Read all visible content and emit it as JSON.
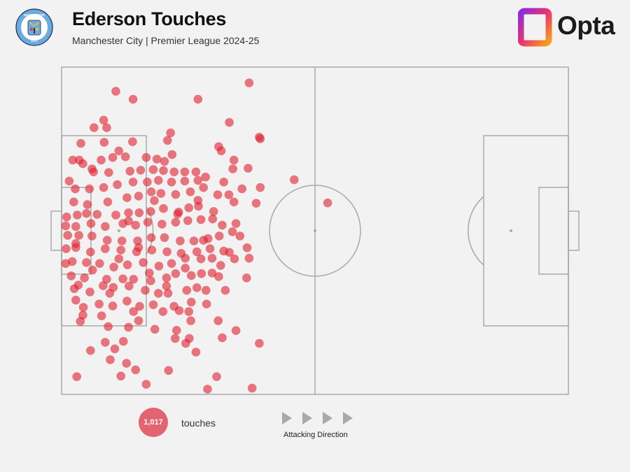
{
  "header": {
    "title": "Ederson Touches",
    "subtitle": "Manchester City | Premier League 2024-25",
    "crest_text": "MANCHESTER CITY",
    "brand": "Opta"
  },
  "legend": {
    "count_label": "1,017",
    "unit_label": "touches",
    "direction_label": "Attacking Direction"
  },
  "colors": {
    "dot": "#e0202f",
    "pitch_line": "#a9a9a9",
    "background": "#f2f2f2",
    "crest_blue": "#6cabdd"
  },
  "chart_data": {
    "type": "scatter",
    "title": "Ederson Touches",
    "subtitle": "Manchester City | Premier League 2024-25",
    "total_touches": 1017,
    "pitch_orientation": "horizontal, attacking left to right",
    "x_range": [
      0,
      100
    ],
    "y_range": [
      0,
      100
    ],
    "points_note": "x = % of pitch length from own goal, y = % of pitch width from top; visible sample of touch locations",
    "points": [
      [
        10.7,
        7.4
      ],
      [
        14.1,
        9.8
      ],
      [
        26.9,
        9.8
      ],
      [
        37.0,
        4.8
      ],
      [
        8.3,
        16.2
      ],
      [
        8.9,
        18.5
      ],
      [
        33.1,
        16.9
      ],
      [
        39.0,
        21.4
      ],
      [
        39.2,
        21.9
      ],
      [
        31.0,
        24.3
      ],
      [
        31.5,
        25.6
      ],
      [
        14.0,
        22.8
      ],
      [
        21.5,
        20.1
      ],
      [
        20.9,
        22.4
      ],
      [
        21.8,
        26.7
      ],
      [
        18.8,
        28.1
      ],
      [
        16.7,
        27.6
      ],
      [
        12.6,
        27.4
      ],
      [
        10.1,
        27.6
      ],
      [
        7.8,
        28.4
      ],
      [
        3.8,
        23.3
      ],
      [
        3.5,
        28.4
      ],
      [
        2.2,
        28.4
      ],
      [
        6.3,
        32.0
      ],
      [
        9.3,
        32.2
      ],
      [
        13.5,
        31.8
      ],
      [
        18.1,
        31.3
      ],
      [
        20.1,
        31.6
      ],
      [
        22.2,
        32.0
      ],
      [
        24.3,
        32.0
      ],
      [
        26.5,
        32.0
      ],
      [
        28.4,
        33.6
      ],
      [
        33.8,
        31.1
      ],
      [
        36.8,
        30.9
      ],
      [
        45.9,
        34.4
      ],
      [
        26.9,
        34.6
      ],
      [
        24.3,
        34.8
      ],
      [
        21.7,
        35.1
      ],
      [
        19.1,
        34.6
      ],
      [
        16.9,
        35.1
      ],
      [
        14.1,
        35.1
      ],
      [
        11.0,
        35.9
      ],
      [
        5.5,
        37.2
      ],
      [
        2.7,
        37.2
      ],
      [
        1.5,
        34.8
      ],
      [
        32.0,
        35.1
      ],
      [
        28.0,
        36.8
      ],
      [
        25.4,
        38.1
      ],
      [
        22.5,
        38.9
      ],
      [
        19.6,
        38.6
      ],
      [
        17.7,
        38.1
      ],
      [
        15.2,
        39.4
      ],
      [
        12.9,
        39.9
      ],
      [
        9.1,
        41.2
      ],
      [
        5.1,
        42.0
      ],
      [
        2.4,
        41.2
      ],
      [
        26.9,
        40.7
      ],
      [
        30.8,
        39.0
      ],
      [
        34.0,
        41.2
      ],
      [
        33.0,
        39.0
      ],
      [
        35.6,
        37.2
      ],
      [
        38.4,
        41.6
      ],
      [
        52.5,
        41.5
      ],
      [
        27.0,
        42.5
      ],
      [
        25.1,
        43.0
      ],
      [
        23.1,
        44.3
      ],
      [
        20.1,
        43.2
      ],
      [
        17.6,
        44.1
      ],
      [
        15.3,
        44.5
      ],
      [
        13.2,
        44.5
      ],
      [
        10.7,
        45.2
      ],
      [
        7.0,
        45.0
      ],
      [
        3.1,
        45.2
      ],
      [
        1.0,
        45.8
      ],
      [
        0.8,
        48.5
      ],
      [
        2.8,
        48.7
      ],
      [
        5.8,
        47.8
      ],
      [
        8.6,
        48.7
      ],
      [
        12.1,
        47.8
      ],
      [
        14.6,
        48.3
      ],
      [
        17.0,
        47.4
      ],
      [
        19.8,
        48.0
      ],
      [
        22.5,
        47.4
      ],
      [
        24.9,
        46.9
      ],
      [
        27.5,
        46.6
      ],
      [
        29.8,
        46.4
      ],
      [
        31.7,
        48.3
      ],
      [
        33.7,
        50.3
      ],
      [
        35.2,
        51.6
      ],
      [
        31.1,
        51.6
      ],
      [
        28.9,
        52.4
      ],
      [
        26.1,
        53.1
      ],
      [
        23.4,
        53.1
      ],
      [
        20.3,
        52.1
      ],
      [
        17.7,
        52.1
      ],
      [
        15.0,
        53.1
      ],
      [
        11.9,
        53.1
      ],
      [
        9.0,
        52.9
      ],
      [
        6.0,
        51.6
      ],
      [
        3.4,
        51.4
      ],
      [
        1.2,
        51.4
      ],
      [
        0.9,
        55.5
      ],
      [
        2.8,
        55.1
      ],
      [
        5.7,
        56.5
      ],
      [
        8.6,
        55.5
      ],
      [
        11.7,
        55.9
      ],
      [
        14.8,
        56.4
      ],
      [
        17.8,
        55.9
      ],
      [
        20.8,
        56.4
      ],
      [
        23.6,
        56.9
      ],
      [
        26.7,
        56.4
      ],
      [
        29.3,
        55.5
      ],
      [
        32.0,
        56.2
      ],
      [
        33.1,
        56.6
      ],
      [
        2.1,
        59.4
      ],
      [
        4.9,
        59.7
      ],
      [
        7.5,
        60.0
      ],
      [
        10.3,
        61.1
      ],
      [
        13.0,
        60.4
      ],
      [
        16.1,
        59.7
      ],
      [
        19.2,
        60.8
      ],
      [
        21.7,
        60.0
      ],
      [
        24.4,
        58.4
      ],
      [
        27.5,
        58.6
      ],
      [
        29.7,
        58.4
      ],
      [
        31.4,
        60.6
      ],
      [
        34.1,
        58.6
      ],
      [
        37.0,
        58.4
      ],
      [
        1.9,
        63.8
      ],
      [
        4.5,
        64.4
      ],
      [
        8.9,
        64.8
      ],
      [
        12.1,
        64.7
      ],
      [
        14.2,
        64.8
      ],
      [
        17.6,
        65.3
      ],
      [
        20.7,
        64.4
      ],
      [
        22.5,
        63.1
      ],
      [
        25.6,
        63.7
      ],
      [
        27.6,
        63.1
      ],
      [
        29.7,
        62.9
      ],
      [
        31.0,
        64.0
      ],
      [
        36.5,
        64.4
      ],
      [
        3.3,
        66.6
      ],
      [
        5.6,
        68.7
      ],
      [
        8.2,
        66.8
      ],
      [
        10.2,
        67.3
      ],
      [
        13.3,
        66.9
      ],
      [
        16.5,
        68.2
      ],
      [
        19.1,
        69.1
      ],
      [
        21.0,
        69.1
      ],
      [
        24.7,
        68.2
      ],
      [
        26.7,
        67.4
      ],
      [
        28.5,
        68.2
      ],
      [
        32.3,
        68.2
      ],
      [
        2.8,
        71.2
      ],
      [
        4.3,
        73.4
      ],
      [
        7.4,
        72.4
      ],
      [
        10.1,
        73.0
      ],
      [
        12.9,
        71.5
      ],
      [
        15.4,
        73.1
      ],
      [
        18.1,
        72.6
      ],
      [
        20.0,
        74.7
      ],
      [
        22.2,
        73.1
      ],
      [
        25.6,
        71.8
      ],
      [
        28.6,
        72.4
      ],
      [
        25.1,
        74.7
      ],
      [
        23.2,
        74.4
      ],
      [
        3.7,
        77.7
      ],
      [
        9.2,
        79.3
      ],
      [
        13.2,
        79.5
      ],
      [
        15.2,
        77.5
      ],
      [
        18.4,
        80.1
      ],
      [
        25.5,
        77.5
      ],
      [
        34.4,
        80.5
      ],
      [
        8.6,
        84.1
      ],
      [
        10.5,
        86.1
      ],
      [
        22.4,
        82.9
      ],
      [
        25.2,
        82.9
      ],
      [
        31.7,
        82.7
      ],
      [
        39.0,
        84.4
      ],
      [
        5.7,
        86.6
      ],
      [
        12.8,
        90.5
      ],
      [
        21.1,
        92.7
      ],
      [
        30.6,
        94.6
      ],
      [
        3.0,
        94.6
      ],
      [
        16.7,
        96.9
      ],
      [
        28.8,
        98.4
      ],
      [
        37.6,
        98.1
      ],
      [
        24.5,
        84.4
      ],
      [
        22.7,
        80.4
      ],
      [
        9.6,
        89.4
      ],
      [
        26.5,
        87.1
      ],
      [
        14.6,
        92.5
      ],
      [
        11.7,
        94.4
      ],
      [
        7.9,
        76.0
      ],
      [
        30.9,
        77.5
      ],
      [
        0.8,
        60.0
      ],
      [
        13.2,
        47.0
      ],
      [
        18.3,
        40.8
      ],
      [
        6.0,
        31.1
      ],
      [
        11.3,
        25.6
      ],
      [
        6.4,
        18.5
      ],
      [
        8.4,
        23.0
      ],
      [
        15.6,
        31.5
      ],
      [
        4.2,
        29.5
      ],
      [
        39.2,
        36.8
      ],
      [
        34.0,
        28.4
      ],
      [
        20.3,
        28.8
      ],
      [
        22.9,
        44.9
      ],
      [
        8.3,
        36.8
      ],
      [
        15.2,
        55.1
      ],
      [
        4.9,
        44.7
      ],
      [
        2.8,
        53.9
      ],
      [
        11.3,
        58.6
      ],
      [
        17.3,
        62.9
      ],
      [
        6.1,
        62.0
      ],
      [
        20.7,
        66.9
      ],
      [
        9.5,
        69.1
      ],
      [
        28.0,
        52.9
      ],
      [
        34.4,
        47.8
      ],
      [
        30.0,
        44.1
      ],
      [
        36.6,
        55.2
      ],
      [
        24.4,
        61.4
      ],
      [
        2.5,
        67.7
      ],
      [
        14.2,
        74.7
      ],
      [
        4.2,
        75.8
      ],
      [
        12.2,
        83.8
      ]
    ]
  }
}
